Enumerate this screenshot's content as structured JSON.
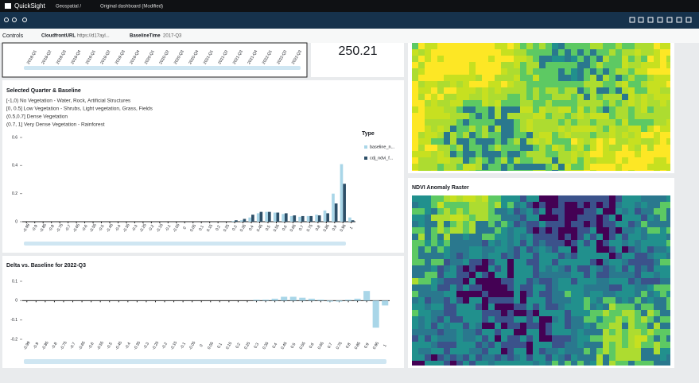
{
  "app": {
    "name": "QuickSight",
    "breadcrumb": "Geospatial /",
    "dashboard": "Original dashboard (Modified)"
  },
  "controls": {
    "title": "Controls",
    "params": [
      {
        "name": "CloudfrontURL",
        "value": "https://d17ayl..."
      },
      {
        "name": "BaselineTime",
        "value": "2017-Q3"
      }
    ]
  },
  "trend": {
    "type": "line",
    "categories": [
      "2018-Q1",
      "2018-Q2",
      "2018-Q3",
      "2018-Q4",
      "2019-Q1",
      "2019-Q2",
      "2019-Q3",
      "2019-Q4",
      "2020-Q1",
      "2020-Q2",
      "2020-Q3",
      "2020-Q4",
      "2021-Q1",
      "2021-Q2",
      "2021-Q3",
      "2021-Q4",
      "2022-Q1",
      "2022-Q2",
      "2022-Q3"
    ]
  },
  "kpi": {
    "value": 250.21
  },
  "histogram": {
    "type": "bar",
    "title": "Selected Quarter & Baseline",
    "notes": [
      "[-1,0) No Vegetation - Water, Rock, Artificial Structures",
      "[0, 0.5] Low Vegetation - Shrubs, Light vegetation, Grass, Fields",
      "(0.5,0.7] Dense Vegetation",
      "(0.7, 1] Very Dense Vegetation - Rainforest"
    ],
    "legend_title": "Type",
    "categories": [
      "-0.99",
      "-0.9",
      "-0.85",
      "-0.8",
      "-0.75",
      "-0.7",
      "-0.65",
      "-0.6",
      "-0.55",
      "-0.5",
      "-0.45",
      "-0.4",
      "-0.35",
      "-0.3",
      "-0.25",
      "-0.2",
      "-0.15",
      "-0.1",
      "-0.05",
      "0",
      "0.05",
      "0.1",
      "0.15",
      "0.2",
      "0.25",
      "0.3",
      "0.35",
      "0.4",
      "0.45",
      "0.5",
      "0.55",
      "0.6",
      "0.65",
      "0.7",
      "0.75",
      "0.8",
      "0.85",
      "0.9",
      "0.95",
      "1"
    ],
    "series": [
      {
        "name": "baseline_n...",
        "color": "#a9d6e8",
        "values": [
          0,
          0,
          0,
          0,
          0,
          0,
          0,
          0,
          0,
          0,
          0,
          0,
          0,
          0,
          0,
          0,
          0,
          0,
          0,
          0,
          0,
          0,
          0,
          0,
          0,
          0.005,
          0.01,
          0.03,
          0.06,
          0.07,
          0.065,
          0.055,
          0.04,
          0.035,
          0.04,
          0.05,
          0.08,
          0.2,
          0.41,
          0.03
        ]
      },
      {
        "name": "cdj_ndvi_f...",
        "color": "#2d4f68",
        "values": [
          0,
          0,
          0,
          0,
          0,
          0,
          0,
          0,
          0,
          0,
          0,
          0,
          0,
          0,
          0,
          0,
          0,
          0,
          0,
          0,
          0,
          0,
          0,
          0,
          0,
          0.01,
          0.02,
          0.05,
          0.07,
          0.07,
          0.065,
          0.06,
          0.045,
          0.04,
          0.04,
          0.045,
          0.06,
          0.13,
          0.27,
          0.01
        ]
      }
    ],
    "ylim": [
      0,
      0.6
    ],
    "yticks": [
      0,
      0.2,
      0.4,
      0.6
    ]
  },
  "delta": {
    "type": "bar",
    "title": "Delta vs. Baseline for 2022-Q3",
    "categories": [
      "-0.99",
      "-0.9",
      "-0.85",
      "-0.8",
      "-0.75",
      "-0.7",
      "-0.65",
      "-0.6",
      "-0.55",
      "-0.5",
      "-0.45",
      "-0.4",
      "-0.35",
      "-0.3",
      "-0.25",
      "-0.2",
      "-0.15",
      "-0.1",
      "-0.05",
      "0",
      "0.05",
      "0.1",
      "0.15",
      "0.2",
      "0.25",
      "0.3",
      "0.35",
      "0.4",
      "0.45",
      "0.5",
      "0.55",
      "0.6",
      "0.65",
      "0.7",
      "0.75",
      "0.8",
      "0.85",
      "0.9",
      "0.95",
      "1"
    ],
    "values": [
      0,
      0,
      0,
      0,
      0,
      0,
      0,
      0,
      0,
      0,
      0,
      0,
      0,
      0,
      0,
      0,
      0,
      0,
      0,
      0,
      0,
      0,
      0,
      0,
      0,
      0.005,
      0.005,
      0.01,
      0.02,
      0.02,
      0.015,
      0.01,
      0.005,
      -0.005,
      -0.005,
      0.005,
      0.01,
      0.05,
      -0.14,
      -0.025
    ],
    "color": "#a9d6e8",
    "ylim": [
      -0.2,
      0.1
    ],
    "yticks": [
      -0.2,
      -0.1,
      0,
      0.1
    ]
  },
  "raster": {
    "title": "NDVI Anomaly Raster"
  }
}
